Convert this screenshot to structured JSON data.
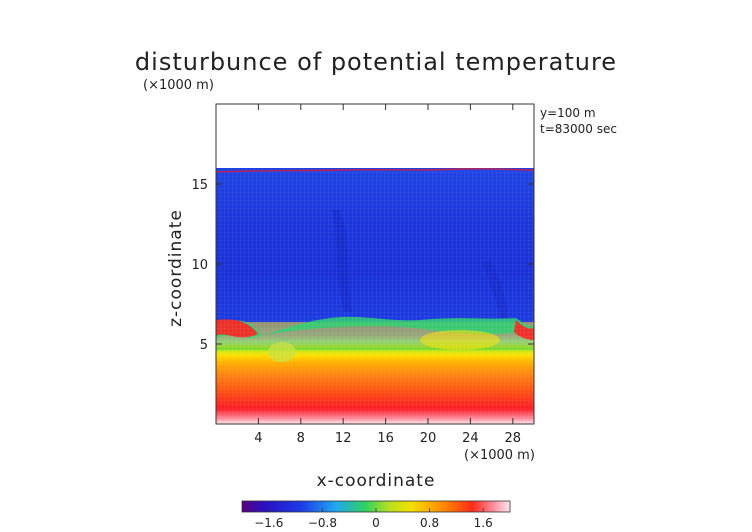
{
  "chart_data": {
    "type": "heatmap",
    "title": "disturbunce of potential temperature",
    "unit_label": "(×1000 m)",
    "x_unit_label": "(×1000 m)",
    "annotations": [
      "y=100 m",
      "t=83000 sec"
    ],
    "xlabel": "x-coordinate",
    "ylabel": "z-coordinate",
    "xlim": [
      0,
      30
    ],
    "ylim": [
      0,
      20
    ],
    "x_ticks": [
      4,
      8,
      12,
      16,
      20,
      24,
      28
    ],
    "y_ticks": [
      5,
      10,
      15
    ],
    "colorbar": {
      "range": [
        -2.0,
        2.0
      ],
      "tick_values": [
        -1.6,
        -0.8,
        0,
        0.8,
        1.6
      ],
      "tick_labels": [
        "−1.6",
        "−0.8",
        "0",
        "0.8",
        "1.6"
      ]
    },
    "description_profile": [
      {
        "z": 0.5,
        "value": 1.9
      },
      {
        "z": 1.5,
        "value": 1.6
      },
      {
        "z": 3.0,
        "value": 1.1
      },
      {
        "z": 4.5,
        "value": 0.7
      },
      {
        "z": 5.5,
        "value": 0.3
      },
      {
        "z": 6.0,
        "value": -0.4
      },
      {
        "z": 7.0,
        "value": -1.2
      },
      {
        "z": 10.0,
        "value": -1.5
      },
      {
        "z": 15.0,
        "value": -1.4
      },
      {
        "z": 15.9,
        "value": -1.3
      }
    ],
    "data_top_z": 16.0
  },
  "colors": {
    "white": "#ffffff",
    "deep_blue": "#1a2ed8",
    "blue": "#2c52f0",
    "cyan": "#20c8f0",
    "green": "#30d040",
    "yellow": "#f4e000",
    "orange": "#ff9a00",
    "red": "#ff2a1a",
    "pink": "#ffd8dc"
  }
}
